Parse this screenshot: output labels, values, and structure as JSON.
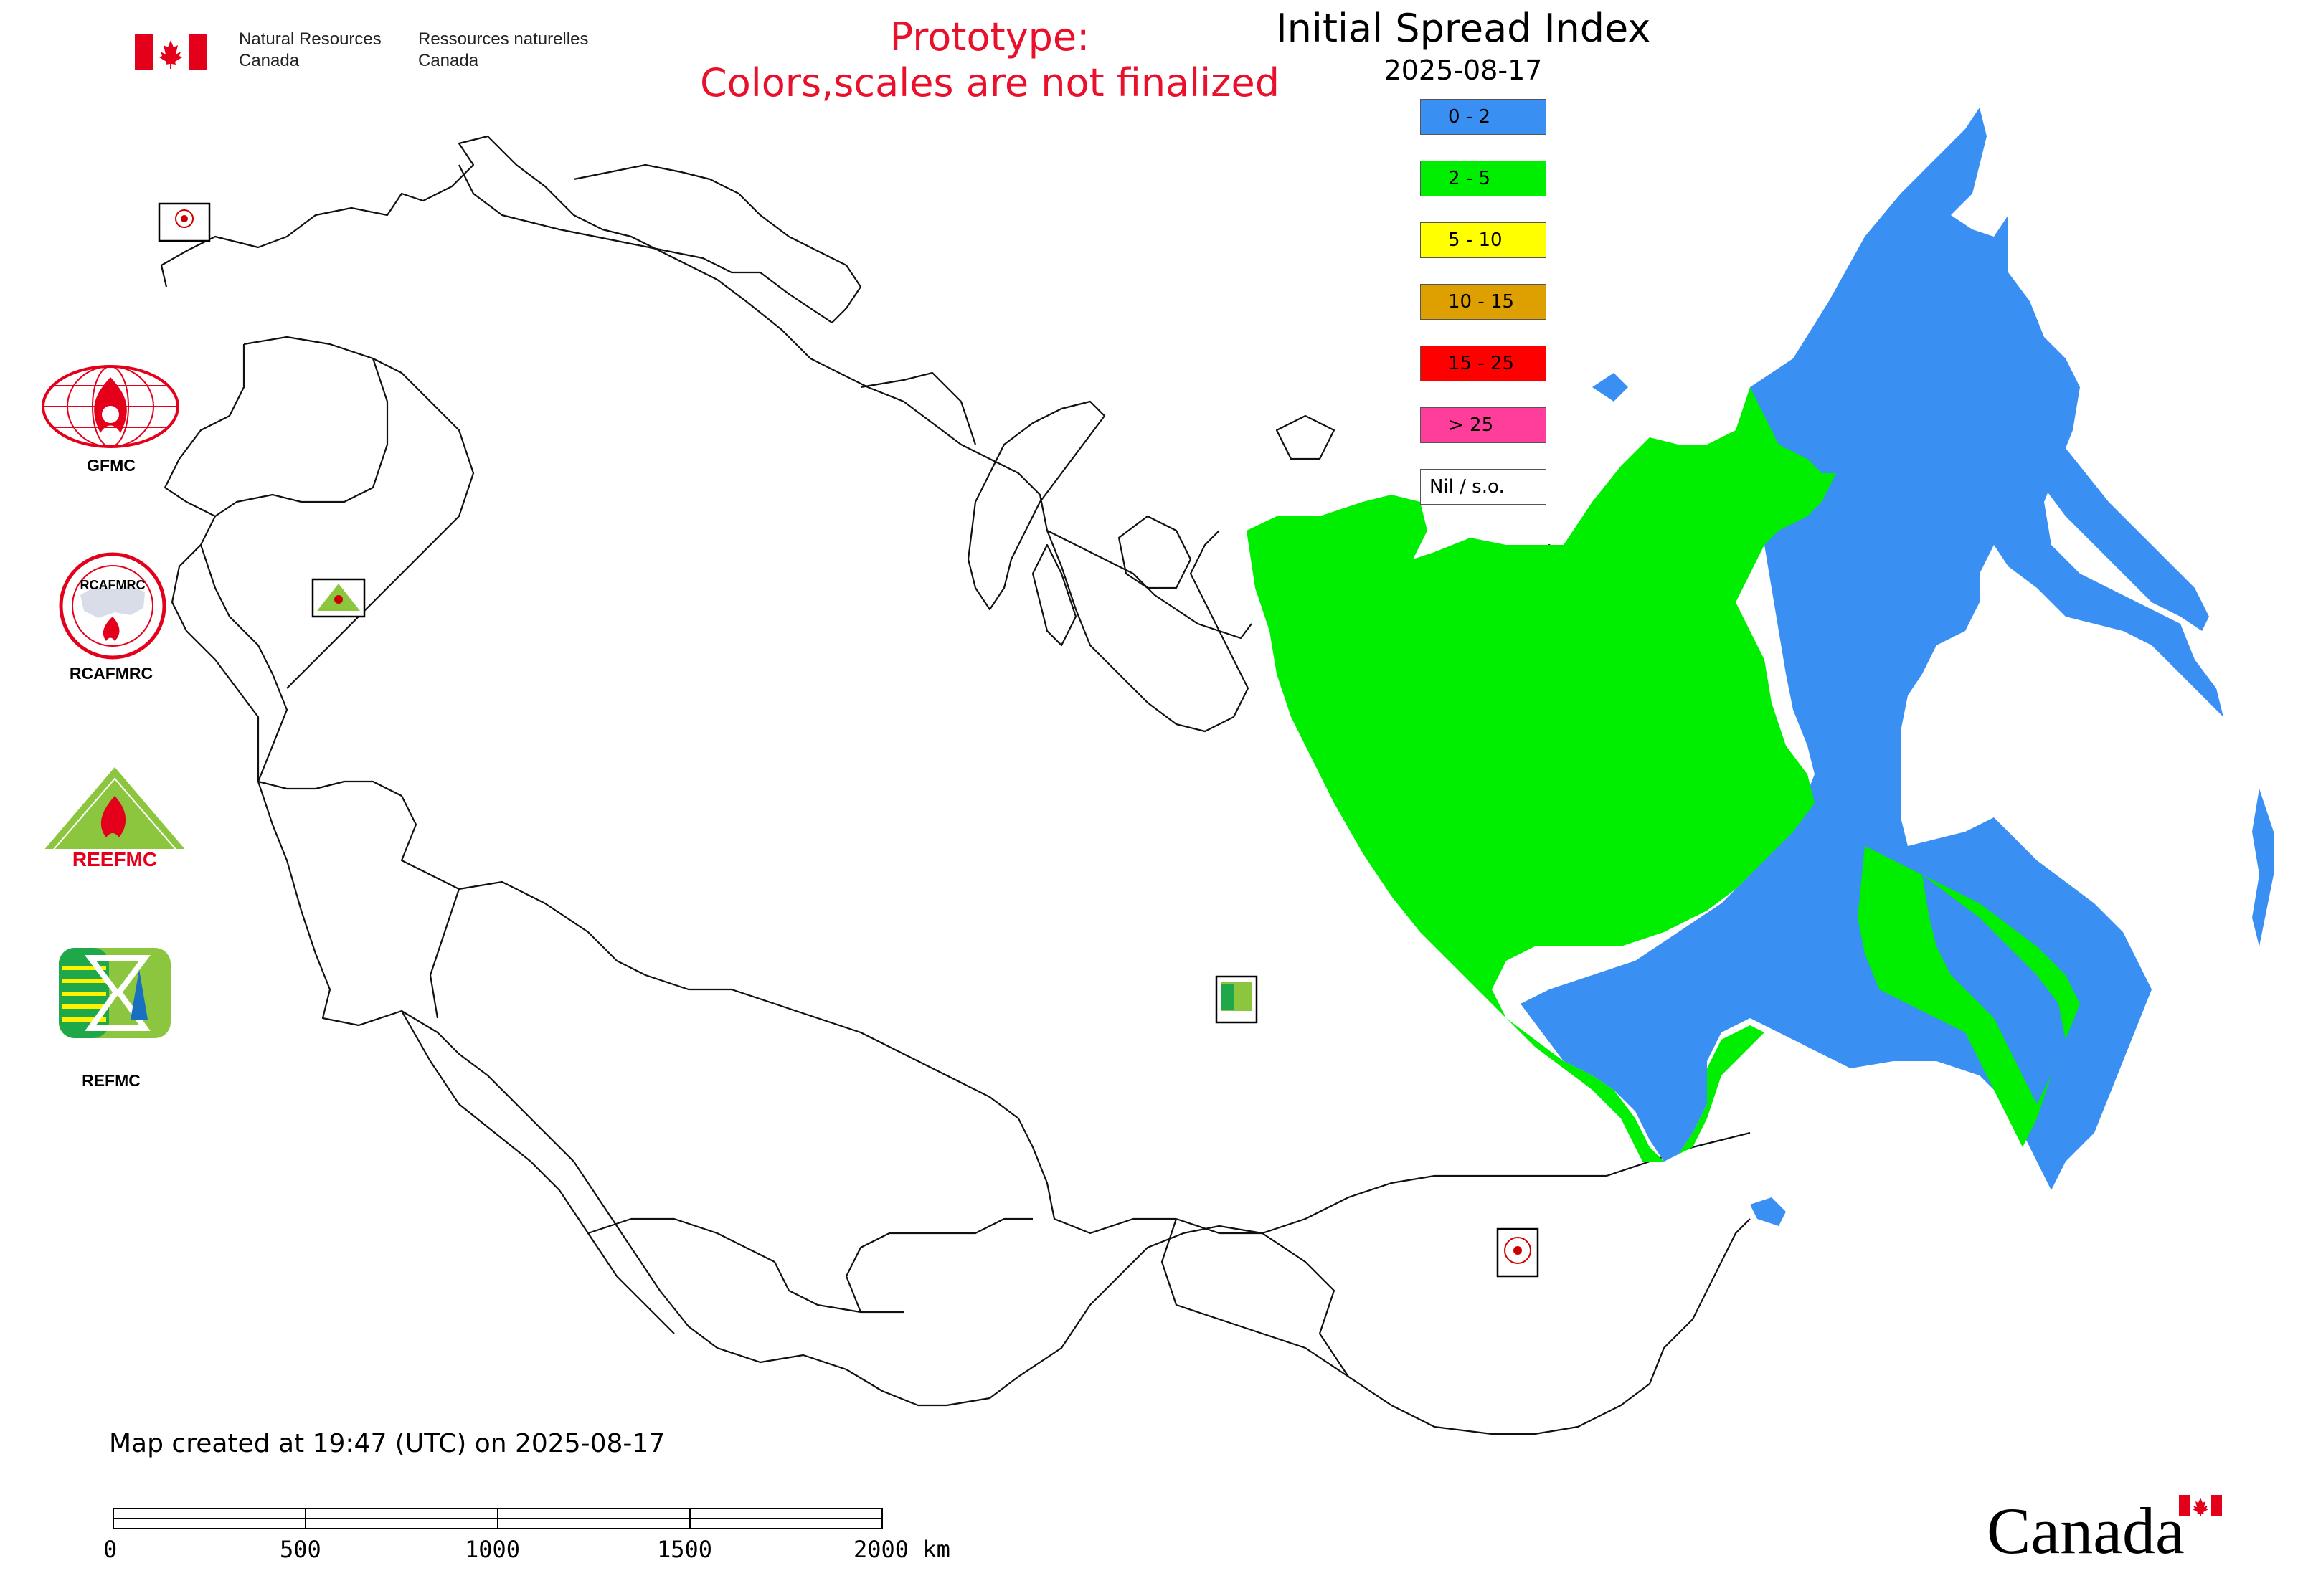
{
  "header": {
    "org_en_line1": "Natural Resources",
    "org_en_line2": "Canada",
    "org_fr_line1": "Ressources naturelles",
    "org_fr_line2": "Canada",
    "flag_icon": "canada-flag-icon"
  },
  "notice": {
    "line1": "Prototype:",
    "line2": "Colors,scales are not finalized",
    "color": "#e8102a"
  },
  "map": {
    "title": "Initial Spread Index",
    "date": "2025-08-17",
    "created_text": "Map created at 19:47 (UTC) on 2025-08-17"
  },
  "legend": {
    "items": [
      {
        "label": "0 - 2",
        "color": "#3a8ff2"
      },
      {
        "label": "2 - 5",
        "color": "#00ee00"
      },
      {
        "label": "5 - 10",
        "color": "#ffff00"
      },
      {
        "label": "10 - 15",
        "color": "#dda000"
      },
      {
        "label": "15 - 25",
        "color": "#ff0000"
      },
      {
        "label": "> 25",
        "color": "#ff3d9a"
      },
      {
        "label": "Nil / s.o.",
        "color": "#ffffff"
      }
    ]
  },
  "partners": [
    {
      "label": "GFMC",
      "icon": "gfmc-logo-icon"
    },
    {
      "label": "RCAFMRC",
      "icon": "rcafmrc-logo-icon"
    },
    {
      "label": "",
      "icon": "reefmc-logo-icon",
      "logo_text": "REEFMC"
    },
    {
      "label": "REFMC",
      "icon": "refmc-logo-icon"
    }
  ],
  "scale_bar": {
    "ticks": [
      "0",
      "500",
      "1000",
      "1500",
      "2000 km"
    ]
  },
  "wordmark": {
    "text": "Canada"
  }
}
